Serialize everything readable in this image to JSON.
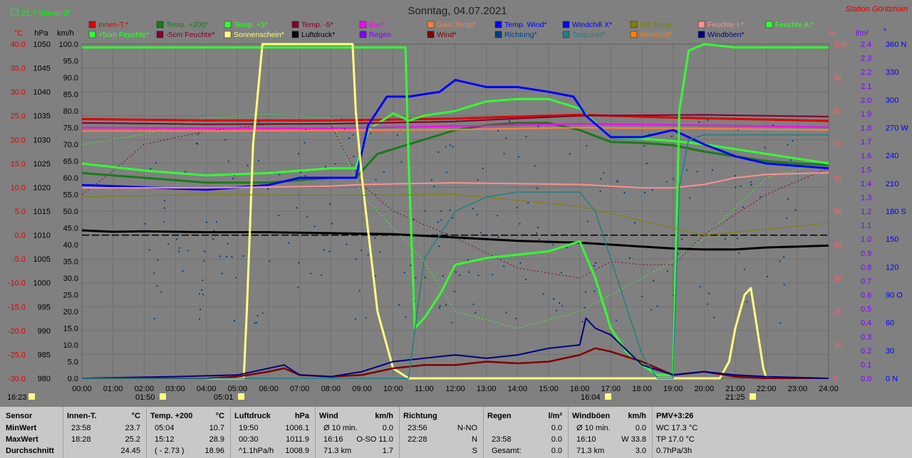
{
  "title": "Sonntag, 04.07.2021",
  "station": "Station Göritzhain",
  "month_avg": "21.7 Monat-Ø",
  "axis_units": {
    "c": "°C",
    "hpa": "hPa",
    "kmh": "km/h",
    "pct": "%",
    "lm2": "l/m²",
    "deg": "°"
  },
  "left_ticks": {
    "c": [
      "40.0",
      "35.0",
      "30.0",
      "25.0",
      "20.0",
      "15.0",
      "10.0",
      "5.0",
      "0.0",
      "-5.0",
      "-10.0",
      "-15.0",
      "-20.0",
      "-25.0",
      "-30.0"
    ],
    "hpa": [
      "1050",
      "1045",
      "1040",
      "1035",
      "1030",
      "1025",
      "1020",
      "1015",
      "1010",
      "1005",
      "1000",
      "995",
      "990",
      "985",
      "980"
    ],
    "kmh": [
      "100.0",
      "95.0",
      "90.0",
      "85.0",
      "80.0",
      "75.0",
      "70.0",
      "65.0",
      "60.0",
      "55.0",
      "50.0",
      "45.0",
      "40.0",
      "35.0",
      "30.0",
      "25.0",
      "20.0",
      "15.0",
      "10.0",
      "5.0",
      "0.0"
    ]
  },
  "right_ticks": {
    "pct": [
      "100",
      "90",
      "80",
      "70",
      "60",
      "50",
      "40",
      "30",
      "20",
      "10",
      "0"
    ],
    "lm2": [
      "2.4",
      "2.3",
      "2.2",
      "2.1",
      "2.0",
      "1.9",
      "1.8",
      "1.7",
      "1.6",
      "1.5",
      "1.4",
      "1.3",
      "1.2",
      "1.1",
      "1.0",
      "0.9",
      "0.8",
      "0.7",
      "0.6",
      "0.5",
      "0.4",
      "0.3",
      "0.2",
      "0.1",
      "0.0"
    ],
    "deg": [
      "360 N",
      "330",
      "300",
      "270 W",
      "240",
      "210",
      "180 S",
      "150",
      "120",
      "90 O",
      "60",
      "30",
      "0 N"
    ]
  },
  "x_ticks": [
    "00:00",
    "01:00",
    "02:00",
    "03:00",
    "04:00",
    "05:00",
    "06:00",
    "07:00",
    "08:00",
    "09:00",
    "10:00",
    "11:00",
    "12:00",
    "13:00",
    "14:00",
    "15:00",
    "16:00",
    "17:00",
    "18:00",
    "19:00",
    "20:00",
    "21:00",
    "22:00",
    "23:00",
    "24:00"
  ],
  "bottom_marks": [
    "16:23",
    "01:50",
    "05:01",
    "16:04",
    "21:25"
  ],
  "legend": [
    {
      "label": "Innen-T.*",
      "color": "#e00000"
    },
    {
      "label": "Temp. +200*",
      "color": "#1a7a1a"
    },
    {
      "label": "Temp. +5*",
      "color": "#33ff33"
    },
    {
      "label": "Temp. -5*",
      "color": "#800030"
    },
    {
      "label": "Bad*",
      "color": "#ff00ff"
    },
    {
      "label": "Gast Temp*",
      "color": "#ff7f40"
    },
    {
      "label": "Temp. Wind*",
      "color": "#0000ff"
    },
    {
      "label": "Windchill X*",
      "color": "#0000ff"
    },
    {
      "label": "Diff Temp.",
      "color": "#808000"
    },
    {
      "label": "Feuchte I.*",
      "color": "#ff9090"
    },
    {
      "label": "Feuchte A.*",
      "color": "#33ff33"
    },
    {
      "label": "+5cm Feuchte*",
      "color": "#33ff33"
    },
    {
      "label": "-5cm Feuchte*",
      "color": "#800030"
    },
    {
      "label": "Sonnenschein*",
      "color": "#ffff80"
    },
    {
      "label": "Luftdruck*",
      "color": "#000000"
    },
    {
      "label": "Regen",
      "color": "#8000ff"
    },
    {
      "label": "Wind*",
      "color": "#800000"
    },
    {
      "label": "Richtung*",
      "color": "#004080"
    },
    {
      "label": "Taupunkt*",
      "color": "#208080"
    },
    {
      "label": "Windchill*",
      "color": "#ff8000"
    },
    {
      "label": "Windböen*",
      "color": "#000080"
    }
  ],
  "chart_data": {
    "type": "line",
    "title": "Sonntag, 04.07.2021",
    "x_range": [
      "00:00",
      "24:00"
    ],
    "ylim_c": [
      -30,
      40
    ],
    "ylim_hpa": [
      980,
      1050
    ],
    "ylim_kmh": [
      0,
      100
    ],
    "ylim_pct": [
      0,
      100
    ],
    "ylim_lm2": [
      0,
      2.5
    ],
    "ylim_deg": [
      0,
      360
    ],
    "series": [
      {
        "name": "Innen-T.*",
        "axis": "c",
        "color": "#e00000",
        "width": 3,
        "x": [
          0,
          4,
          8,
          12,
          16,
          19,
          22,
          24
        ],
        "y": [
          24.3,
          24.0,
          24.0,
          24.4,
          25.2,
          24.6,
          24.2,
          23.9
        ]
      },
      {
        "name": "Temp. +200*",
        "axis": "c",
        "color": "#1a7a1a",
        "width": 3,
        "x": [
          0,
          2,
          4,
          6,
          8,
          8.8,
          9.5,
          10.5,
          12,
          13,
          14,
          15,
          16,
          17,
          18,
          19,
          20,
          21,
          22,
          23,
          24
        ],
        "y": [
          13,
          12,
          11,
          11,
          12,
          12,
          17,
          19,
          22,
          23,
          23.5,
          23.5,
          22,
          19.5,
          19.3,
          18.8,
          17.5,
          16.5,
          15.5,
          15,
          14.7
        ]
      },
      {
        "name": "Temp. +5*",
        "axis": "c",
        "color": "#33ff33",
        "width": 3,
        "x": [
          0,
          2,
          4,
          6,
          8,
          8.8,
          9.2,
          10,
          10.5,
          11,
          12,
          13,
          14,
          15,
          15.5,
          16,
          17,
          18,
          19,
          20,
          21,
          22,
          23,
          24
        ],
        "y": [
          15,
          13.5,
          12.5,
          13,
          14,
          14,
          22,
          25.5,
          24,
          25,
          26,
          28,
          28.5,
          28.5,
          27.5,
          26.5,
          20.5,
          20.2,
          19.7,
          19,
          18,
          17,
          16,
          15
        ]
      },
      {
        "name": "Temp. -5*",
        "axis": "c",
        "color": "#800030",
        "width": 2,
        "x": [
          0,
          4,
          8,
          12,
          16,
          20,
          24
        ],
        "y": [
          23.5,
          23.2,
          23.3,
          23.8,
          25.0,
          25.2,
          24.8
        ]
      },
      {
        "name": "Bad*",
        "axis": "c",
        "color": "#ff00ff",
        "width": 2,
        "x": [
          0,
          4,
          8,
          12,
          16,
          20,
          24
        ],
        "y": [
          22.5,
          22.4,
          22.4,
          22.8,
          23.3,
          23.0,
          22.6
        ]
      },
      {
        "name": "Gast Temp*",
        "axis": "c",
        "color": "#ff7f40",
        "width": 2,
        "x": [
          0,
          4,
          8,
          12,
          16,
          20,
          24
        ],
        "y": [
          21.8,
          21.8,
          21.9,
          22.1,
          22.5,
          22.3,
          22.0
        ]
      },
      {
        "name": "Temp. Wind*",
        "axis": "c",
        "color": "#0000ff",
        "width": 3,
        "x": [
          0,
          2,
          4,
          6,
          7,
          8.8,
          9.2,
          9.8,
          10.5,
          11.5,
          12,
          13,
          14,
          15,
          15.8,
          16.2,
          17,
          18,
          19,
          20,
          21,
          22,
          23,
          24
        ],
        "y": [
          10.5,
          10,
          9.5,
          10.5,
          12,
          12,
          23,
          29,
          29,
          30,
          32.5,
          31,
          31,
          30,
          29,
          25,
          20.5,
          20.5,
          22,
          19,
          16.5,
          15,
          14.5,
          14
        ]
      },
      {
        "name": "Luftdruck*",
        "axis": "hpa",
        "color": "#000000",
        "width": 3,
        "x": [
          0,
          1,
          2,
          4,
          6,
          8,
          10,
          12,
          14,
          16,
          18,
          19,
          20,
          21,
          22,
          23,
          24
        ],
        "y": [
          1011.0,
          1010.7,
          1010.8,
          1010.6,
          1010.6,
          1010.4,
          1010.2,
          1009.5,
          1008.8,
          1008.4,
          1007.6,
          1007.2,
          1007.0,
          1007.0,
          1007.4,
          1007.6,
          1007.8
        ]
      },
      {
        "name": "Luftdruck Referenz",
        "axis": "hpa",
        "color": "#000000",
        "width": 1.5,
        "x": [
          0,
          24
        ],
        "y": [
          1010.0,
          1010.0
        ]
      },
      {
        "name": "Feuchte I.*",
        "axis": "pct",
        "color": "#ff9090",
        "width": 2,
        "x": [
          0,
          4,
          8,
          9,
          12,
          16,
          18,
          19,
          20,
          21,
          22,
          24
        ],
        "y": [
          57,
          57,
          57.5,
          58,
          58.5,
          58,
          57,
          57,
          58,
          60,
          61,
          61.5
        ]
      },
      {
        "name": "Feuchte A.*",
        "axis": "pct",
        "color": "#33ff33",
        "width": 3,
        "x": [
          0,
          10.4,
          10.5,
          10.7,
          11,
          11.5,
          12,
          13,
          14,
          15,
          16,
          16.5,
          17,
          17.5,
          18,
          18.5,
          19,
          19.2,
          19.5,
          20,
          21,
          24
        ],
        "y": [
          99,
          99,
          65,
          15,
          18,
          25,
          34,
          36,
          37,
          38,
          41,
          30,
          15,
          8,
          4,
          1,
          1,
          80,
          98,
          100,
          99,
          99
        ]
      },
      {
        "name": "Sonnenschein*",
        "axis": "pct",
        "color": "#ffff80",
        "width": 3,
        "x": [
          0,
          5.2,
          5.3,
          5.5,
          5.8,
          6,
          8.7,
          8.8,
          9,
          9.5,
          10,
          10.5,
          20.5,
          20.8,
          21,
          21.3,
          21.5,
          21.7,
          21.9,
          22,
          24
        ],
        "y": [
          0,
          0,
          20,
          70,
          100,
          100,
          100,
          80,
          60,
          20,
          3,
          0,
          0,
          5,
          15,
          25,
          27,
          15,
          3,
          0,
          0
        ]
      },
      {
        "name": "Wind*",
        "axis": "kmh",
        "color": "#800000",
        "width": 2.5,
        "x": [
          0,
          4,
          5,
          6,
          6.5,
          7,
          8,
          9,
          10,
          11,
          12,
          13,
          14,
          15,
          16,
          16.5,
          17,
          18,
          19,
          20,
          21,
          22,
          24
        ],
        "y": [
          0,
          0,
          0.5,
          2,
          3,
          1,
          0.5,
          1,
          3,
          4,
          4,
          5,
          4.5,
          5,
          7,
          9,
          8,
          5,
          1,
          2,
          0.5,
          0,
          0
        ]
      },
      {
        "name": "Windböen*",
        "axis": "kmh",
        "color": "#000080",
        "width": 2,
        "x": [
          0,
          3,
          5,
          6,
          6.5,
          7,
          8,
          9,
          10,
          11,
          12,
          13,
          14,
          15,
          16,
          16.2,
          16.5,
          17,
          18,
          19,
          20,
          21,
          22,
          24
        ],
        "y": [
          0,
          0.5,
          1,
          3,
          4,
          1,
          0.5,
          2,
          5,
          6,
          7,
          6,
          7,
          9,
          10,
          18,
          15,
          13,
          4,
          1,
          2,
          1,
          0.5,
          0
        ]
      },
      {
        "name": "Taupunkt*",
        "axis": "c",
        "color": "#208080",
        "width": 1.5,
        "x": [
          0,
          10.5,
          11,
          12,
          13,
          14,
          15,
          16,
          16.5,
          17,
          17.5,
          18,
          18.5,
          19,
          19.2,
          19.5,
          20,
          24
        ],
        "y": [
          -30,
          -30,
          -5,
          5,
          8,
          9,
          9,
          9,
          5,
          -5,
          -15,
          -25,
          -30,
          -30,
          10,
          20,
          21,
          21
        ]
      },
      {
        "name": "Diff Temp.",
        "axis": "c",
        "color": "#808000",
        "width": 1,
        "x": [
          0,
          4,
          8,
          12,
          16,
          20,
          24
        ],
        "y": [
          8,
          8.5,
          8.3,
          8.5,
          6,
          0,
          2.5
        ]
      }
    ],
    "scatter_richtung": {
      "name": "Richtung*",
      "axis": "deg",
      "color": "#004080"
    },
    "dotted": [
      {
        "name": "+5cm Feuchte*",
        "axis": "pct",
        "color": "#33ff33",
        "x": [
          0,
          2,
          4,
          6,
          8,
          9,
          10,
          11,
          12,
          14,
          16,
          18,
          19,
          20,
          22,
          24
        ],
        "y": [
          70,
          73,
          78,
          79,
          78,
          55,
          45,
          35,
          20,
          15,
          20,
          30,
          35,
          42,
          60,
          65
        ]
      },
      {
        "name": "-5cm Feuchte*",
        "axis": "pct",
        "color": "#800030",
        "x": [
          0,
          1,
          2,
          4,
          6,
          8,
          9,
          10,
          12,
          14,
          16,
          17,
          18,
          19,
          20,
          22,
          24
        ],
        "y": [
          55,
          62,
          70,
          74,
          76,
          76,
          58,
          50,
          42,
          33,
          30,
          35,
          34,
          34,
          43,
          55,
          63
        ]
      }
    ],
    "right_label_values": {
      "pct": [
        0,
        100
      ],
      "lm2": [
        0,
        2.5
      ],
      "deg": [
        0,
        360
      ]
    }
  },
  "stats": {
    "row_labels": [
      "Sensor",
      "MinWert",
      "MaxWert",
      "Durchschnitt"
    ],
    "cols": [
      {
        "head": "Innen-T.",
        "unit": "°C",
        "min_t": "23:58",
        "min_v": "23.7",
        "max_t": "18:28",
        "max_v": "25.2",
        "avg_t": "",
        "avg_v": "24.45"
      },
      {
        "head": "Temp. +200",
        "unit": "°C",
        "min_t": "05:04",
        "min_v": "10.7",
        "max_t": "15:12",
        "max_v": "28.9",
        "avg_t": "( - 2.73 )",
        "avg_v": "18.96"
      },
      {
        "head": "Luftdruck",
        "unit": "hPa",
        "min_t": "19:50",
        "min_v": "1006.1",
        "max_t": "00:30",
        "max_v": "1011.9",
        "avg_t": "^1.1hPa/h",
        "avg_v": "1008.9"
      },
      {
        "head": "Wind",
        "unit": "km/h",
        "min_t": "Ø 10 min.",
        "min_v": "0.0",
        "max_t": "16:16",
        "max_v": "O-SO 11.0",
        "avg_t": "71.3 km",
        "avg_v": "1.7"
      },
      {
        "head": "Richtung",
        "unit": "",
        "min_t": "23:56",
        "min_v": "N-NO",
        "max_t": "22:28",
        "max_v": "N",
        "avg_t": "",
        "avg_v": "S"
      },
      {
        "head": "Regen",
        "unit": "l/m²",
        "min_t": "",
        "min_v": "0.0",
        "max_t": "23:58",
        "max_v": "0.0",
        "avg_t": "Gesamt:",
        "avg_v": "0.0"
      },
      {
        "head": "Windböen",
        "unit": "km/h",
        "min_t": "Ø 10 min.",
        "min_v": "0.0",
        "max_t": "16:10",
        "max_v": "W 33.8",
        "avg_t": "71.3 km",
        "avg_v": "3.0"
      }
    ],
    "pmv": {
      "head": "PMV+3:26",
      "wc": "WC 17.3 °C",
      "tp": "TP 17.0 °C",
      "dp": "0.7hPa/3h"
    }
  }
}
